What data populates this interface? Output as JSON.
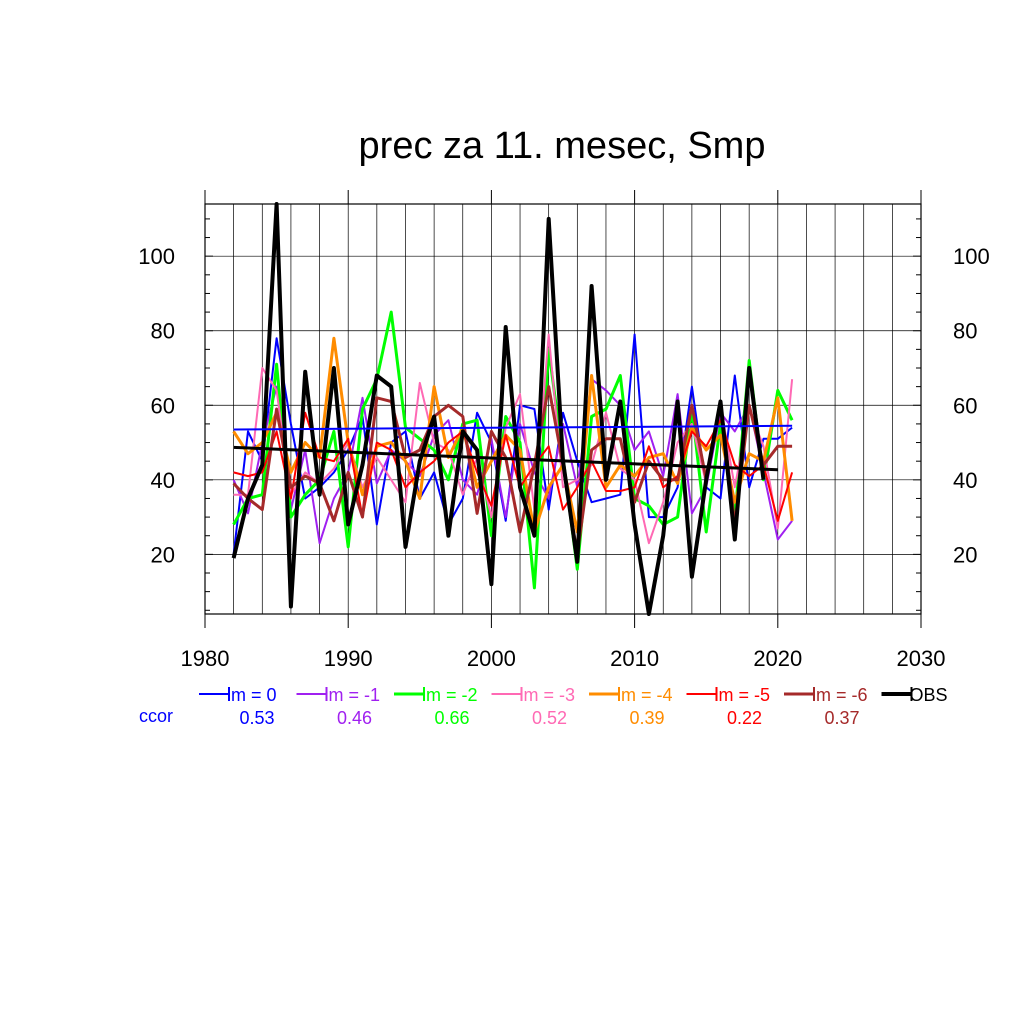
{
  "chart_data": {
    "type": "line",
    "title": "prec za 11. mesec, Smp",
    "xlabel": "",
    "ylabel": "",
    "xlim": [
      1980,
      2030
    ],
    "ylim": [
      4,
      114
    ],
    "x_ticks": [
      1980,
      1990,
      2000,
      2010,
      2020,
      2030
    ],
    "y_ticks": [
      20,
      40,
      60,
      80,
      100
    ],
    "grid": true,
    "legend_position": "bottom",
    "ccor_label": "ccor",
    "x": [
      1982,
      1983,
      1984,
      1985,
      1986,
      1987,
      1988,
      1989,
      1990,
      1991,
      1992,
      1993,
      1994,
      1995,
      1996,
      1997,
      1998,
      1999,
      2000,
      2001,
      2002,
      2003,
      2004,
      2005,
      2006,
      2007,
      2008,
      2009,
      2010,
      2011,
      2012,
      2013,
      2014,
      2015,
      2016,
      2017,
      2018,
      2019,
      2020,
      2021
    ],
    "series": [
      {
        "name": "lm = 0",
        "ccor": "0.53",
        "color": "#0000ff",
        "width": 2,
        "values": [
          20,
          53,
          45,
          78,
          55,
          35,
          38,
          42,
          48,
          57,
          28,
          50,
          53,
          35,
          42,
          28,
          35,
          58,
          50,
          29,
          60,
          59,
          32,
          58,
          45,
          34,
          35,
          36,
          79,
          30,
          30,
          38,
          65,
          38,
          35,
          68,
          38,
          51,
          51,
          54
        ],
        "trend": [
          53.5,
          54.5
        ]
      },
      {
        "name": "lm = -1",
        "ccor": "0.46",
        "color": "#a020f0",
        "width": 2,
        "values": [
          40,
          31,
          50,
          65,
          32,
          48,
          23,
          35,
          42,
          62,
          39,
          48,
          45,
          41,
          52,
          56,
          40,
          36,
          51,
          30,
          55,
          42,
          35,
          55,
          38,
          67,
          64,
          60,
          48,
          53,
          41,
          63,
          31,
          38,
          58,
          53,
          60,
          42,
          24,
          29
        ]
      },
      {
        "name": "lm = -2",
        "ccor": "0.66",
        "color": "#00ff00",
        "width": 3,
        "values": [
          28,
          35,
          36,
          71,
          30,
          36,
          40,
          53,
          22,
          59,
          67,
          85,
          54,
          51,
          48,
          40,
          55,
          56,
          25,
          57,
          50,
          11,
          75,
          46,
          16,
          57,
          59,
          68,
          35,
          33,
          28,
          30,
          59,
          26,
          55,
          30,
          72,
          40,
          64,
          56
        ]
      },
      {
        "name": "lm = -3",
        "ccor": "0.52",
        "color": "#ff69b4",
        "width": 2,
        "values": [
          36,
          36,
          70,
          64,
          36,
          42,
          39,
          43,
          50,
          38,
          46,
          40,
          34,
          66,
          50,
          48,
          36,
          46,
          30,
          54,
          63,
          32,
          79,
          38,
          40,
          44,
          58,
          43,
          40,
          23,
          34,
          50,
          55,
          39,
          60,
          38,
          59,
          49,
          27,
          67
        ]
      },
      {
        "name": "lm = -4",
        "ccor": "0.39",
        "color": "#ff8c00",
        "width": 3,
        "values": [
          53,
          47,
          50,
          58,
          42,
          50,
          46,
          78,
          50,
          36,
          49,
          50,
          45,
          35,
          65,
          46,
          54,
          38,
          45,
          52,
          48,
          26,
          38,
          44,
          26,
          68,
          38,
          44,
          41,
          46,
          47,
          39,
          54,
          48,
          52,
          34,
          47,
          45,
          62,
          29
        ]
      },
      {
        "name": "lm = -5",
        "ccor": "0.22",
        "color": "#ff0000",
        "width": 2,
        "values": [
          42,
          41,
          42,
          53,
          35,
          58,
          46,
          45,
          51,
          30,
          50,
          48,
          38,
          42,
          45,
          50,
          53,
          42,
          33,
          52,
          38,
          44,
          49,
          32,
          38,
          45,
          37,
          37,
          38,
          49,
          38,
          41,
          53,
          49,
          56,
          44,
          41,
          44,
          29,
          42
        ]
      },
      {
        "name": "lm = -6",
        "ccor": "0.37",
        "color": "#a52a2a",
        "width": 3,
        "values": [
          39,
          35,
          32,
          59,
          38,
          41,
          39,
          29,
          42,
          30,
          62,
          61,
          46,
          48,
          57,
          60,
          57,
          31,
          53,
          46,
          26,
          44,
          65,
          44,
          20,
          48,
          51,
          51,
          34,
          45,
          40,
          40,
          60,
          40,
          61,
          28,
          60,
          44,
          49,
          49
        ]
      },
      {
        "name": "OBS",
        "ccor": "",
        "color": "#000000",
        "width": 4,
        "values": [
          19,
          35,
          44,
          114,
          6,
          69,
          36,
          70,
          28,
          44,
          68,
          65,
          22,
          45,
          57,
          25,
          53,
          48,
          12,
          81,
          38,
          25,
          110,
          45,
          18,
          92,
          40,
          61,
          28,
          4,
          25,
          61,
          14,
          40,
          61,
          24,
          70,
          40,
          null,
          null
        ],
        "trend": [
          48.7,
          42.7
        ]
      }
    ]
  }
}
